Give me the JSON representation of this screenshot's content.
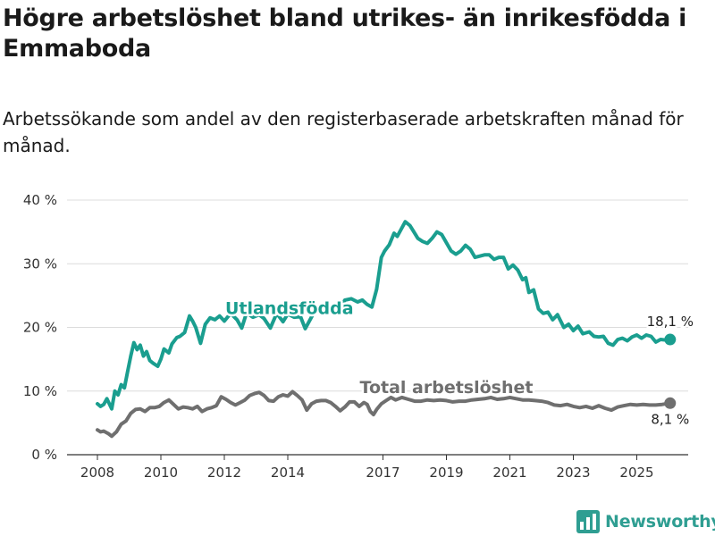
{
  "title": "Högre arbetslöshet bland utrikes- än inrikesfödda i Emmaboda",
  "subtitle": "Arbetssökande som andel av den registerbaserade arbetskraften månad för månad.",
  "brand": {
    "name": "Newsworthy",
    "color": "#2f9e92"
  },
  "chart_data": {
    "type": "line",
    "title": "Högre arbetslöshet bland utrikes- än inrikesfödda i Emmaboda",
    "xlabel": "",
    "ylabel": "",
    "xlim": [
      2007.8,
      2026.5
    ],
    "ylim": [
      0,
      40
    ],
    "y_ticks": [
      0,
      10,
      20,
      30,
      40
    ],
    "y_tick_labels": [
      "0 %",
      "10 %",
      "20 %",
      "30 %",
      "40 %"
    ],
    "x_ticks": [
      2008,
      2010,
      2012,
      2014,
      2017,
      2019,
      2021,
      2023,
      2025
    ],
    "x_tick_labels": [
      "2008",
      "2010",
      "2012",
      "2014",
      "2017",
      "2019",
      "2021",
      "2023",
      "2025"
    ],
    "grid": true,
    "series": [
      {
        "name": "Utlandsfödda",
        "color": "#1a9e8f",
        "end_label": "18,1 %",
        "points": [
          [
            2008.0,
            8.0
          ],
          [
            2008.1,
            7.6
          ],
          [
            2008.2,
            7.9
          ],
          [
            2008.3,
            8.8
          ],
          [
            2008.45,
            7.2
          ],
          [
            2008.55,
            10.0
          ],
          [
            2008.65,
            9.4
          ],
          [
            2008.75,
            11.0
          ],
          [
            2008.85,
            10.5
          ],
          [
            2008.95,
            13.0
          ],
          [
            2009.05,
            15.5
          ],
          [
            2009.15,
            17.6
          ],
          [
            2009.25,
            16.5
          ],
          [
            2009.35,
            17.2
          ],
          [
            2009.45,
            15.5
          ],
          [
            2009.55,
            16.2
          ],
          [
            2009.65,
            14.8
          ],
          [
            2009.75,
            14.4
          ],
          [
            2009.9,
            13.9
          ],
          [
            2010.0,
            15.0
          ],
          [
            2010.1,
            16.6
          ],
          [
            2010.25,
            16.0
          ],
          [
            2010.35,
            17.4
          ],
          [
            2010.5,
            18.4
          ],
          [
            2010.6,
            18.6
          ],
          [
            2010.75,
            19.2
          ],
          [
            2010.9,
            21.8
          ],
          [
            2011.0,
            21.0
          ],
          [
            2011.1,
            20.0
          ],
          [
            2011.25,
            17.5
          ],
          [
            2011.4,
            20.5
          ],
          [
            2011.55,
            21.5
          ],
          [
            2011.7,
            21.2
          ],
          [
            2011.85,
            21.8
          ],
          [
            2012.0,
            21.0
          ],
          [
            2012.2,
            22.2
          ],
          [
            2012.4,
            21.2
          ],
          [
            2012.55,
            19.9
          ],
          [
            2012.7,
            22.3
          ],
          [
            2012.9,
            21.6
          ],
          [
            2013.1,
            22.0
          ],
          [
            2013.25,
            21.4
          ],
          [
            2013.45,
            19.9
          ],
          [
            2013.65,
            22.2
          ],
          [
            2013.85,
            20.9
          ],
          [
            2014.0,
            22.1
          ],
          [
            2014.2,
            21.6
          ],
          [
            2014.4,
            21.7
          ],
          [
            2014.55,
            19.8
          ],
          [
            2014.8,
            22.1
          ],
          [
            2015.0,
            23.0
          ],
          [
            2015.2,
            22.3
          ],
          [
            2015.4,
            22.6
          ],
          [
            2015.6,
            22.8
          ],
          [
            2015.8,
            24.3
          ],
          [
            2016.0,
            24.5
          ],
          [
            2016.2,
            24.0
          ],
          [
            2016.35,
            24.3
          ],
          [
            2016.5,
            23.6
          ],
          [
            2016.65,
            23.2
          ],
          [
            2016.8,
            26.0
          ],
          [
            2016.95,
            31.0
          ],
          [
            2017.05,
            32.0
          ],
          [
            2017.2,
            33.0
          ],
          [
            2017.35,
            34.8
          ],
          [
            2017.45,
            34.3
          ],
          [
            2017.55,
            35.2
          ],
          [
            2017.7,
            36.6
          ],
          [
            2017.85,
            36.0
          ],
          [
            2018.0,
            34.8
          ],
          [
            2018.1,
            34.0
          ],
          [
            2018.25,
            33.5
          ],
          [
            2018.4,
            33.2
          ],
          [
            2018.55,
            34.0
          ],
          [
            2018.7,
            35.0
          ],
          [
            2018.85,
            34.6
          ],
          [
            2019.0,
            33.3
          ],
          [
            2019.15,
            32.0
          ],
          [
            2019.3,
            31.5
          ],
          [
            2019.45,
            32.0
          ],
          [
            2019.6,
            32.9
          ],
          [
            2019.75,
            32.3
          ],
          [
            2019.9,
            31.0
          ],
          [
            2020.05,
            31.2
          ],
          [
            2020.2,
            31.4
          ],
          [
            2020.35,
            31.4
          ],
          [
            2020.5,
            30.7
          ],
          [
            2020.65,
            31.0
          ],
          [
            2020.8,
            31.0
          ],
          [
            2020.95,
            29.2
          ],
          [
            2021.1,
            29.8
          ],
          [
            2021.25,
            29.0
          ],
          [
            2021.4,
            27.5
          ],
          [
            2021.5,
            27.8
          ],
          [
            2021.6,
            25.5
          ],
          [
            2021.75,
            25.9
          ],
          [
            2021.9,
            22.9
          ],
          [
            2022.05,
            22.2
          ],
          [
            2022.2,
            22.4
          ],
          [
            2022.35,
            21.2
          ],
          [
            2022.5,
            22.0
          ],
          [
            2022.7,
            20.0
          ],
          [
            2022.85,
            20.5
          ],
          [
            2023.0,
            19.5
          ],
          [
            2023.15,
            20.2
          ],
          [
            2023.3,
            19.0
          ],
          [
            2023.5,
            19.3
          ],
          [
            2023.65,
            18.6
          ],
          [
            2023.8,
            18.5
          ],
          [
            2023.95,
            18.6
          ],
          [
            2024.1,
            17.5
          ],
          [
            2024.25,
            17.2
          ],
          [
            2024.4,
            18.1
          ],
          [
            2024.55,
            18.3
          ],
          [
            2024.7,
            17.9
          ],
          [
            2024.85,
            18.5
          ],
          [
            2025.0,
            18.8
          ],
          [
            2025.15,
            18.3
          ],
          [
            2025.3,
            18.8
          ],
          [
            2025.45,
            18.6
          ],
          [
            2025.6,
            17.7
          ],
          [
            2025.75,
            18.1
          ],
          [
            2025.95,
            18.0
          ],
          [
            2026.05,
            18.1
          ]
        ]
      },
      {
        "name": "Total arbetslöshet",
        "color": "#6f6f6f",
        "end_label": "8,1 %",
        "points": [
          [
            2008.0,
            3.9
          ],
          [
            2008.1,
            3.6
          ],
          [
            2008.2,
            3.7
          ],
          [
            2008.35,
            3.3
          ],
          [
            2008.45,
            2.9
          ],
          [
            2008.6,
            3.6
          ],
          [
            2008.75,
            4.8
          ],
          [
            2008.9,
            5.3
          ],
          [
            2009.05,
            6.5
          ],
          [
            2009.2,
            7.1
          ],
          [
            2009.35,
            7.2
          ],
          [
            2009.5,
            6.8
          ],
          [
            2009.65,
            7.4
          ],
          [
            2009.8,
            7.4
          ],
          [
            2009.95,
            7.6
          ],
          [
            2010.1,
            8.2
          ],
          [
            2010.25,
            8.6
          ],
          [
            2010.4,
            7.9
          ],
          [
            2010.55,
            7.2
          ],
          [
            2010.7,
            7.5
          ],
          [
            2010.85,
            7.4
          ],
          [
            2011.0,
            7.2
          ],
          [
            2011.15,
            7.6
          ],
          [
            2011.3,
            6.8
          ],
          [
            2011.45,
            7.2
          ],
          [
            2011.6,
            7.4
          ],
          [
            2011.75,
            7.7
          ],
          [
            2011.9,
            9.1
          ],
          [
            2012.05,
            8.7
          ],
          [
            2012.2,
            8.2
          ],
          [
            2012.35,
            7.8
          ],
          [
            2012.5,
            8.2
          ],
          [
            2012.65,
            8.6
          ],
          [
            2012.8,
            9.3
          ],
          [
            2012.95,
            9.6
          ],
          [
            2013.1,
            9.8
          ],
          [
            2013.25,
            9.3
          ],
          [
            2013.4,
            8.5
          ],
          [
            2013.55,
            8.4
          ],
          [
            2013.7,
            9.1
          ],
          [
            2013.85,
            9.4
          ],
          [
            2014.0,
            9.2
          ],
          [
            2014.15,
            9.9
          ],
          [
            2014.3,
            9.3
          ],
          [
            2014.45,
            8.6
          ],
          [
            2014.6,
            7.0
          ],
          [
            2014.75,
            8.0
          ],
          [
            2014.9,
            8.4
          ],
          [
            2015.05,
            8.5
          ],
          [
            2015.2,
            8.5
          ],
          [
            2015.35,
            8.2
          ],
          [
            2015.5,
            7.6
          ],
          [
            2015.65,
            6.9
          ],
          [
            2015.8,
            7.5
          ],
          [
            2015.95,
            8.3
          ],
          [
            2016.1,
            8.3
          ],
          [
            2016.25,
            7.6
          ],
          [
            2016.4,
            8.2
          ],
          [
            2016.5,
            7.9
          ],
          [
            2016.6,
            6.8
          ],
          [
            2016.7,
            6.3
          ],
          [
            2016.8,
            7.1
          ],
          [
            2016.95,
            8.0
          ],
          [
            2017.1,
            8.5
          ],
          [
            2017.25,
            9.0
          ],
          [
            2017.4,
            8.6
          ],
          [
            2017.6,
            9.0
          ],
          [
            2017.8,
            8.7
          ],
          [
            2018.0,
            8.4
          ],
          [
            2018.2,
            8.4
          ],
          [
            2018.4,
            8.6
          ],
          [
            2018.6,
            8.5
          ],
          [
            2018.8,
            8.6
          ],
          [
            2019.0,
            8.5
          ],
          [
            2019.2,
            8.3
          ],
          [
            2019.4,
            8.4
          ],
          [
            2019.6,
            8.4
          ],
          [
            2019.8,
            8.6
          ],
          [
            2020.0,
            8.7
          ],
          [
            2020.2,
            8.8
          ],
          [
            2020.4,
            9.0
          ],
          [
            2020.6,
            8.7
          ],
          [
            2020.8,
            8.8
          ],
          [
            2021.0,
            9.0
          ],
          [
            2021.2,
            8.8
          ],
          [
            2021.4,
            8.6
          ],
          [
            2021.6,
            8.6
          ],
          [
            2021.8,
            8.5
          ],
          [
            2022.0,
            8.4
          ],
          [
            2022.2,
            8.2
          ],
          [
            2022.4,
            7.8
          ],
          [
            2022.6,
            7.7
          ],
          [
            2022.8,
            7.9
          ],
          [
            2023.0,
            7.6
          ],
          [
            2023.2,
            7.4
          ],
          [
            2023.4,
            7.6
          ],
          [
            2023.6,
            7.3
          ],
          [
            2023.8,
            7.7
          ],
          [
            2024.0,
            7.3
          ],
          [
            2024.2,
            7.0
          ],
          [
            2024.4,
            7.5
          ],
          [
            2024.6,
            7.7
          ],
          [
            2024.8,
            7.9
          ],
          [
            2025.0,
            7.8
          ],
          [
            2025.2,
            7.9
          ],
          [
            2025.4,
            7.8
          ],
          [
            2025.6,
            7.8
          ],
          [
            2025.8,
            7.9
          ],
          [
            2026.05,
            8.1
          ]
        ]
      }
    ]
  }
}
